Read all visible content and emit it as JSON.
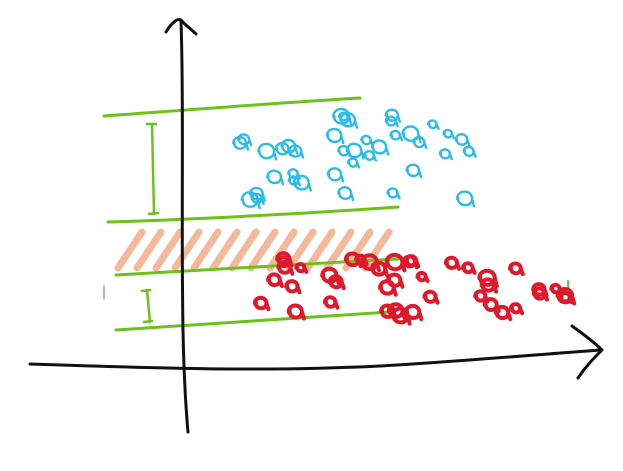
{
  "figure": {
    "description_free": true,
    "colors": {
      "axes": "#111111",
      "band_lines": "#6cc21a",
      "upper_points": "#2bbcea",
      "lower_points": "#e0182b",
      "gap_hatch": "#f3a07a"
    },
    "upper_band_points": 38,
    "lower_band_points": 40,
    "axes_arrows": [
      "y-arrow",
      "x-arrow"
    ]
  }
}
